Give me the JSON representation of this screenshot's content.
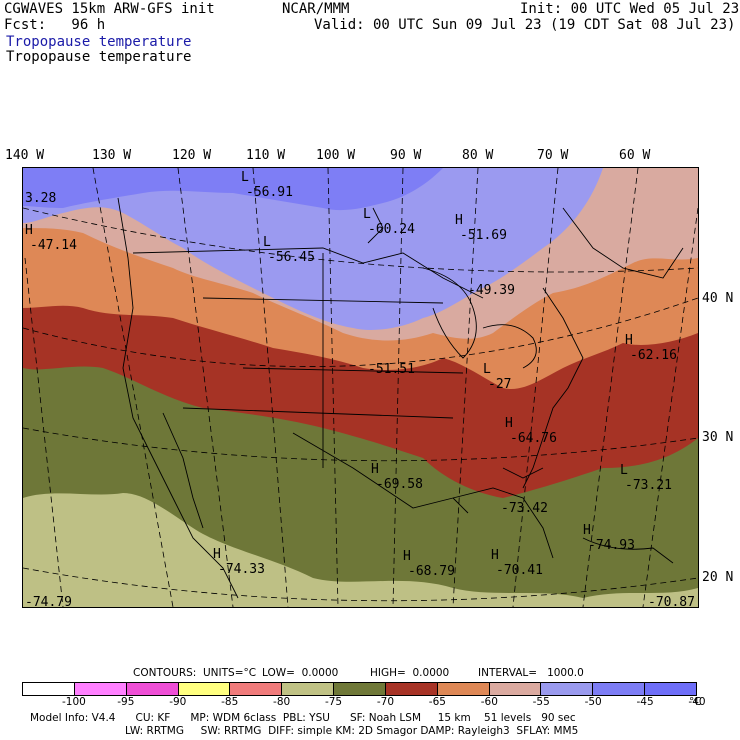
{
  "header": {
    "model": "CGWAVES 15km ARW-GFS init",
    "org": "NCAR/MMM",
    "init": "Init: 00 UTC Wed 05 Jul 23",
    "fcst": "Fcst:   96 h",
    "valid": "Valid: 00 UTC Sun 09 Jul 23 (19 CDT Sat 08 Jul 23)",
    "field_colored": "Tropopause temperature",
    "field_contour": "Tropopause temperature"
  },
  "axes": {
    "lon_labels": [
      "140 W",
      "130 W",
      "120 W",
      "110 W",
      "100 W",
      "90 W",
      "80 W",
      "70 W",
      "60 W"
    ],
    "lat_labels": [
      "40 N",
      "30 N",
      "20 N"
    ]
  },
  "map": {
    "extrema": [
      {
        "type": "H",
        "value": "-47.14"
      },
      {
        "type": "",
        "value": "3.28"
      },
      {
        "type": "L",
        "value": "-56.91"
      },
      {
        "type": "L",
        "value": "-60.24"
      },
      {
        "type": "H",
        "value": "-51.69"
      },
      {
        "type": "L",
        "value": "-56.45"
      },
      {
        "type": "",
        "value": "-49.39"
      },
      {
        "type": "H",
        "value": "-62.16"
      },
      {
        "type": "",
        "value": "-51.51"
      },
      {
        "type": "L",
        "value": "-27"
      },
      {
        "type": "H",
        "value": "-64.76"
      },
      {
        "type": "L",
        "value": "-73.21"
      },
      {
        "type": "H",
        "value": "-69.58"
      },
      {
        "type": "",
        "value": "-73.42"
      },
      {
        "type": "H",
        "value": "-74.93"
      },
      {
        "type": "H",
        "value": "-74.33"
      },
      {
        "type": "H",
        "value": "-68.79"
      },
      {
        "type": "H",
        "value": "-70.41"
      },
      {
        "type": "",
        "value": "-74.79"
      },
      {
        "type": "",
        "value": "-70.87"
      }
    ],
    "colors": {
      "v_cold": "#bec085",
      "cold": "#6e7738",
      "mid_dark": "#a63325",
      "mid": "#de8856",
      "mid_light": "#d9aaa0",
      "warm": "#9b9af0",
      "v_warm": "#7e7ef5"
    }
  },
  "contour_info": {
    "contours": "CONTOURS:",
    "units": "UNITS=°C",
    "low": "LOW=  0.0000",
    "high": "HIGH=  0.0000",
    "interval": "INTERVAL=   1000.0"
  },
  "colorbar": {
    "colors": [
      "#ffffff",
      "#ff80ff",
      "#ef4fd6",
      "#ffff80",
      "#f07b7b",
      "#c0c285",
      "#6f7838",
      "#a73326",
      "#de8856",
      "#dbaaa0",
      "#9a9aee",
      "#7d7df5",
      "#6e6ef8"
    ],
    "ticks": [
      "-100",
      "-95",
      "-90",
      "-85",
      "-80",
      "-75",
      "-70",
      "-65",
      "-60",
      "-55",
      "-50",
      "-45",
      "-40"
    ],
    "unit": "°C"
  },
  "footer": {
    "line1": "Model Info: V4.4      CU: KF      MP: WDM 6class  PBL: YSU      SF: Noah LSM     15 km    51 levels   90 sec",
    "line2": "LW: RRTMG     SW: RRTMG  DIFF: simple KM: 2D Smagor DAMP: Rayleigh3  SFLAY: MM5"
  }
}
